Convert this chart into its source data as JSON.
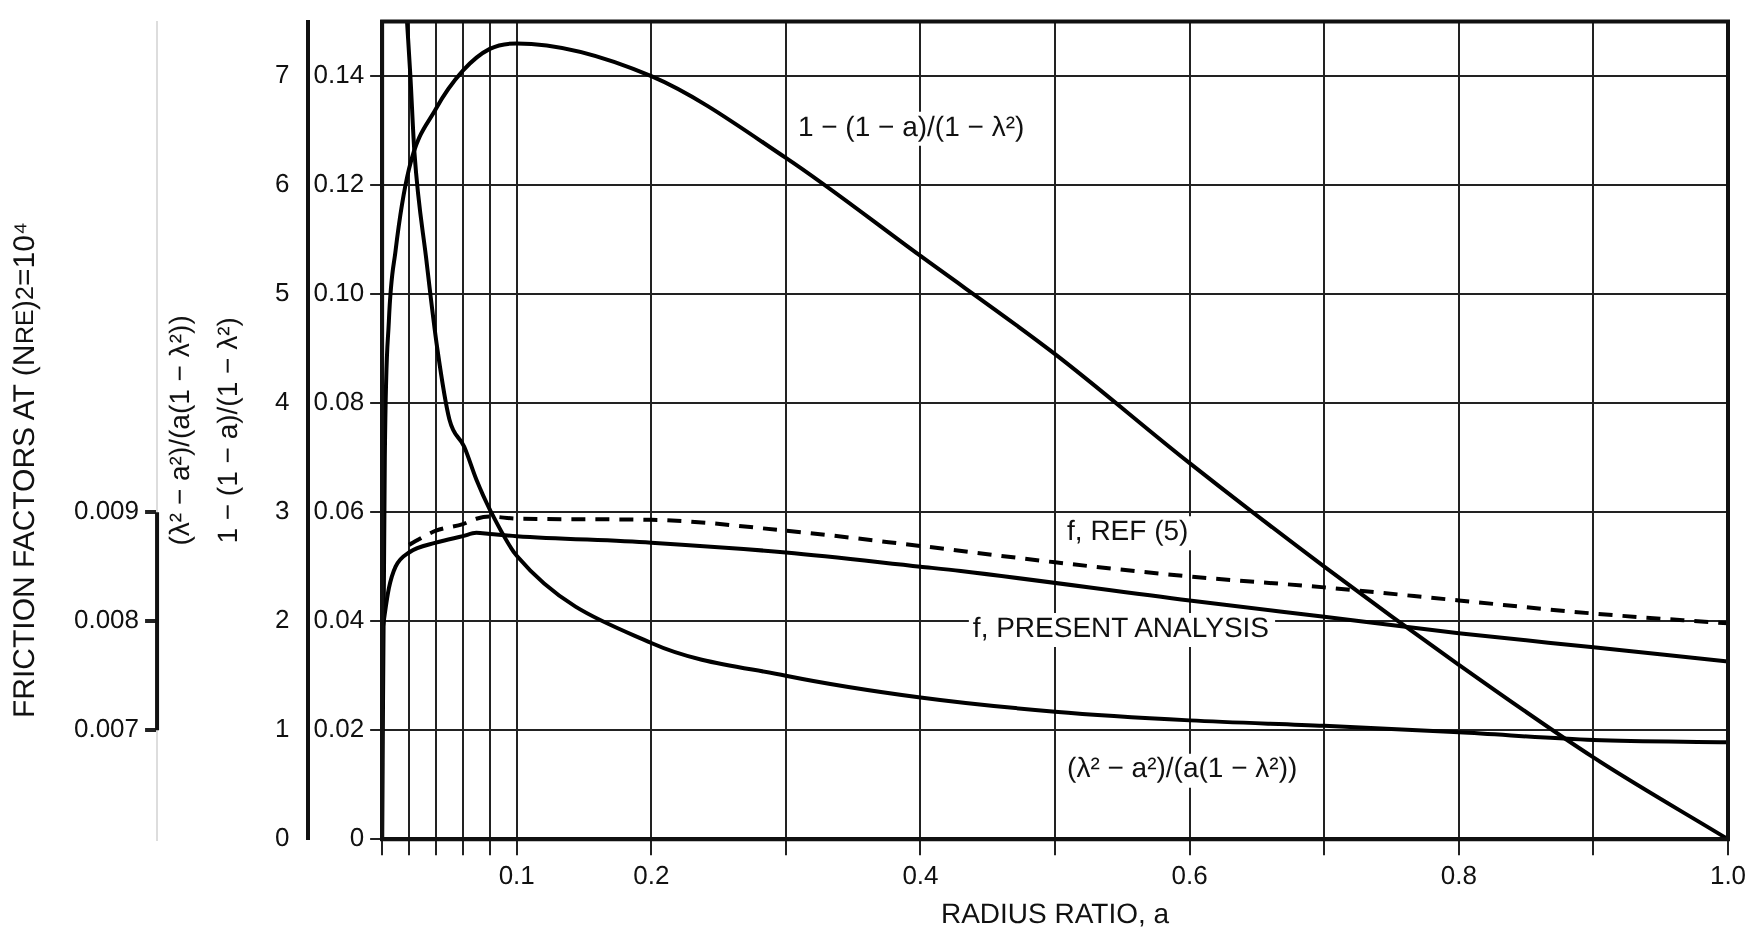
{
  "chart_data": {
    "type": "line",
    "xlabel": "RADIUS RATIO, a",
    "ylabel": "1 − (1 − a)/(1 − λ²)",
    "y3label": "(λ² − a²)/(a(1 − λ²))",
    "y2label": "FRICTION FACTORS AT (N$_{RE}$)$_{2}$=10⁴",
    "xlim": [
      0,
      1
    ],
    "xticks": [
      {
        "value": 0,
        "label": null
      },
      {
        "value": 0.02,
        "label": null
      },
      {
        "value": 0.04,
        "label": null
      },
      {
        "value": 0.06,
        "label": null
      },
      {
        "value": 0.08,
        "label": null
      },
      0.1,
      0.2,
      {
        "value": 0.3,
        "label": null
      },
      0.4,
      {
        "value": 0.5,
        "label": null
      },
      0.6,
      {
        "value": 0.7,
        "label": null
      },
      0.8,
      {
        "value": 0.9,
        "label": null
      },
      {
        "value": 1,
        "label": "1.0"
      }
    ],
    "ylim": [
      0,
      0.15
    ],
    "yticks": [
      0,
      0.02,
      0.04,
      0.06,
      0.08,
      {
        "value": 0.1,
        "label": "0.10"
      },
      0.12,
      0.14
    ],
    "y3lim": [
      0,
      7.5
    ],
    "y3ticks": [
      0,
      1,
      2,
      3,
      4,
      5,
      6,
      7
    ],
    "y2lim": [
      0.006,
      0.0135
    ],
    "y2ticks": [
      0.007,
      0.008,
      0.009
    ],
    "grid": true,
    "series": [
      {
        "name": "1 − (1 − a)/(1 − λ²)",
        "color": "#000000",
        "axis": "y",
        "x": [
          0,
          0.002,
          0.005,
          0.01,
          0.02,
          0.04,
          0.06,
          0.08,
          0.1,
          0.2,
          0.3,
          0.4,
          0.5,
          0.6,
          0.7,
          0.8,
          0.9,
          1
        ],
        "values": [
          0,
          0.07,
          0.095,
          0.108,
          0.123,
          0.134,
          0.141,
          0.145,
          0.146,
          0.14,
          0.125,
          0.107,
          0.089,
          0.069,
          0.05,
          0.032,
          0.015,
          0
        ]
      },
      {
        "name": "(λ² − a²)/(a(1 − λ²))",
        "color": "#000000",
        "axis": "y3",
        "x": [
          0.0185,
          0.021,
          0.024,
          0.033,
          0.041,
          0.05,
          0.061,
          0.07,
          0.081,
          0.1,
          0.2,
          0.3,
          0.4,
          0.5,
          0.6,
          0.7,
          0.8,
          0.9,
          1
        ],
        "values": [
          7.5,
          7,
          6.3,
          5.3,
          4.5,
          3.85,
          3.6,
          3.3,
          3,
          2.6,
          1.8,
          1.5,
          1.3,
          1.17,
          1.09,
          1.04,
          0.98,
          0.91,
          0.89
        ]
      },
      {
        "name": "f, PRESENT ANALYSIS",
        "color": "#000000",
        "axis": "y2",
        "x": [
          0,
          0.005,
          0.01,
          0.02,
          0.04,
          0.06,
          0.07,
          0.08,
          0.1,
          0.2,
          0.3,
          0.4,
          0.43,
          0.6,
          0.7,
          0.8,
          0.9,
          1
        ],
        "values": [
          0.0079,
          0.0083,
          0.0085,
          0.00863,
          0.00872,
          0.00878,
          0.00881,
          0.0088,
          0.00878,
          0.00872,
          0.00863,
          0.0085,
          0.00846,
          0.00819,
          0.00804,
          0.00789,
          0.00776,
          0.00763
        ]
      },
      {
        "name": "f, REF (5)",
        "color": "#000000",
        "axis": "y2",
        "line_style": "dashed",
        "x": [
          0.02,
          0.04,
          0.06,
          0.07,
          0.08,
          0.1,
          0.2,
          0.3,
          0.4,
          0.5,
          0.6,
          0.7,
          0.8,
          0.9,
          1
        ],
        "values": [
          0.0087,
          0.00883,
          0.00889,
          0.00894,
          0.00896,
          0.00894,
          0.00893,
          0.00883,
          0.00869,
          0.00854,
          0.00841,
          0.00831,
          0.00819,
          0.00807,
          0.00798
        ]
      }
    ]
  }
}
